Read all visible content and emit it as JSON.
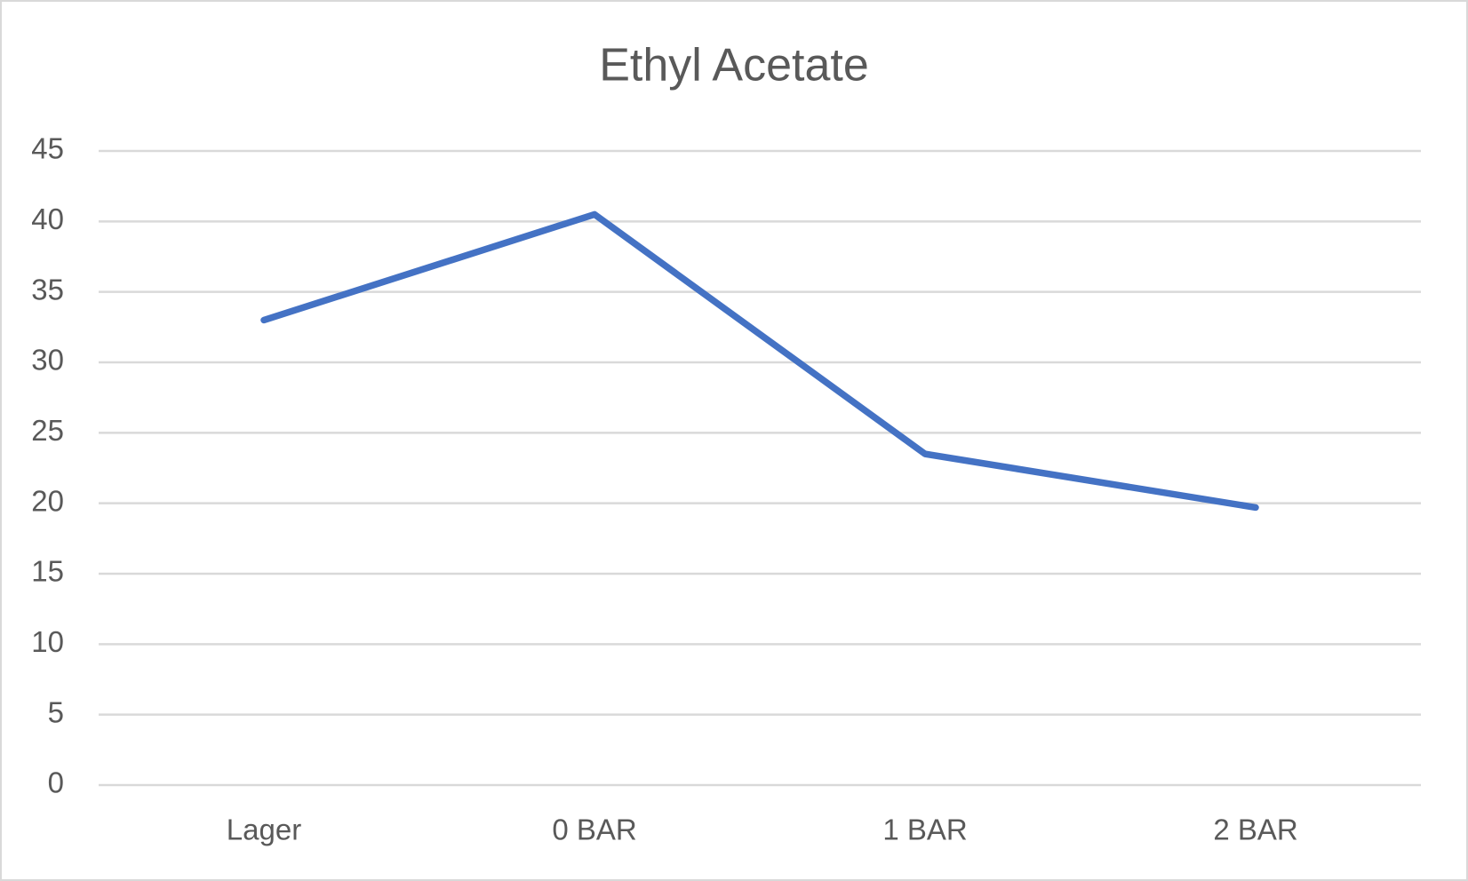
{
  "chart_data": {
    "type": "line",
    "title": "Ethyl Acetate",
    "categories": [
      "Lager",
      "0 BAR",
      "1 BAR",
      "2 BAR"
    ],
    "values": [
      33,
      40.5,
      23.5,
      19.7
    ],
    "color": "#4472c4",
    "ylim": [
      0,
      45
    ],
    "yticks": [
      0,
      5,
      10,
      15,
      20,
      25,
      30,
      35,
      40,
      45
    ],
    "grid": true
  }
}
